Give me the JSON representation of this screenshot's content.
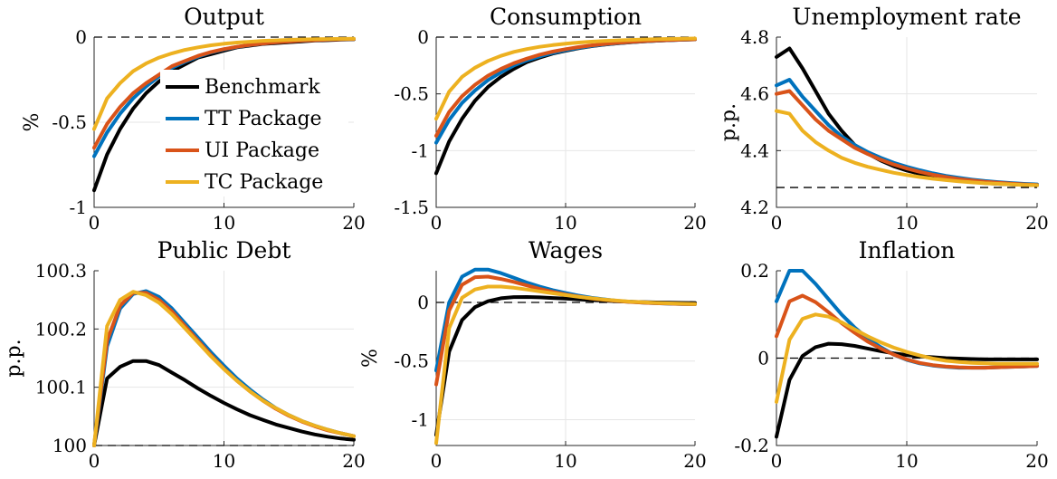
{
  "legend": {
    "panel": 0,
    "entries": [
      "Benchmark",
      "TT Package",
      "UI Package",
      "TC Package"
    ]
  },
  "chart_data": [
    {
      "type": "line",
      "title": "Output",
      "ylabel": "%",
      "xlim": [
        0,
        20
      ],
      "ylim": [
        -1,
        0
      ],
      "xticks": [
        0,
        10,
        20
      ],
      "yticks": [
        -1,
        -0.5,
        0
      ],
      "ytick_labels": [
        "-1",
        "-0.5",
        "0"
      ],
      "ref_line": 0,
      "x": [
        0,
        1,
        2,
        3,
        4,
        5,
        6,
        7,
        8,
        9,
        10,
        11,
        12,
        13,
        14,
        15,
        16,
        17,
        18,
        19,
        20
      ],
      "series": [
        {
          "name": "Benchmark",
          "color": "#000000",
          "values": [
            -0.9,
            -0.69,
            -0.54,
            -0.42,
            -0.33,
            -0.26,
            -0.2,
            -0.16,
            -0.12,
            -0.1,
            -0.08,
            -0.06,
            -0.05,
            -0.04,
            -0.035,
            -0.03,
            -0.025,
            -0.02,
            -0.018,
            -0.015,
            -0.013
          ]
        },
        {
          "name": "TT Package",
          "color": "#0072BD",
          "values": [
            -0.7,
            -0.56,
            -0.45,
            -0.36,
            -0.29,
            -0.23,
            -0.18,
            -0.145,
            -0.115,
            -0.09,
            -0.072,
            -0.058,
            -0.047,
            -0.038,
            -0.031,
            -0.025,
            -0.021,
            -0.018,
            -0.015,
            -0.013,
            -0.011
          ]
        },
        {
          "name": "UI Package",
          "color": "#D95319",
          "values": [
            -0.65,
            -0.51,
            -0.41,
            -0.33,
            -0.27,
            -0.22,
            -0.17,
            -0.14,
            -0.11,
            -0.087,
            -0.07,
            -0.057,
            -0.046,
            -0.038,
            -0.031,
            -0.026,
            -0.021,
            -0.018,
            -0.015,
            -0.013,
            -0.011
          ]
        },
        {
          "name": "TC Package",
          "color": "#EDB120",
          "values": [
            -0.54,
            -0.36,
            -0.27,
            -0.2,
            -0.155,
            -0.12,
            -0.095,
            -0.075,
            -0.06,
            -0.048,
            -0.039,
            -0.032,
            -0.027,
            -0.022,
            -0.019,
            -0.016,
            -0.014,
            -0.012,
            -0.011,
            -0.01,
            -0.009
          ]
        }
      ]
    },
    {
      "type": "line",
      "title": "Consumption",
      "ylabel": "",
      "xlim": [
        0,
        20
      ],
      "ylim": [
        -1.5,
        0
      ],
      "xticks": [
        0,
        10,
        20
      ],
      "yticks": [
        -1.5,
        -1,
        -0.5,
        0
      ],
      "ytick_labels": [
        "-1.5",
        "-1",
        "-0.5",
        "0"
      ],
      "ref_line": 0,
      "x": [
        0,
        1,
        2,
        3,
        4,
        5,
        6,
        7,
        8,
        9,
        10,
        11,
        12,
        13,
        14,
        15,
        16,
        17,
        18,
        19,
        20
      ],
      "series": [
        {
          "name": "Benchmark",
          "color": "#000000",
          "values": [
            -1.2,
            -0.92,
            -0.72,
            -0.56,
            -0.44,
            -0.35,
            -0.28,
            -0.22,
            -0.18,
            -0.145,
            -0.12,
            -0.098,
            -0.08,
            -0.066,
            -0.055,
            -0.046,
            -0.038,
            -0.032,
            -0.027,
            -0.023,
            -0.02
          ]
        },
        {
          "name": "TT Package",
          "color": "#0072BD",
          "values": [
            -0.93,
            -0.73,
            -0.58,
            -0.47,
            -0.38,
            -0.31,
            -0.25,
            -0.205,
            -0.17,
            -0.14,
            -0.115,
            -0.095,
            -0.078,
            -0.065,
            -0.054,
            -0.045,
            -0.038,
            -0.032,
            -0.027,
            -0.023,
            -0.02
          ]
        },
        {
          "name": "UI Package",
          "color": "#D95319",
          "values": [
            -0.87,
            -0.66,
            -0.52,
            -0.42,
            -0.34,
            -0.28,
            -0.23,
            -0.19,
            -0.155,
            -0.128,
            -0.106,
            -0.088,
            -0.073,
            -0.061,
            -0.051,
            -0.043,
            -0.036,
            -0.03,
            -0.026,
            -0.022,
            -0.019
          ]
        },
        {
          "name": "TC Package",
          "color": "#EDB120",
          "values": [
            -0.72,
            -0.48,
            -0.35,
            -0.27,
            -0.21,
            -0.165,
            -0.13,
            -0.105,
            -0.085,
            -0.07,
            -0.058,
            -0.048,
            -0.04,
            -0.034,
            -0.029,
            -0.025,
            -0.021,
            -0.018,
            -0.016,
            -0.014,
            -0.012
          ]
        }
      ]
    },
    {
      "type": "line",
      "title": "Unemployment rate",
      "ylabel": "p.p.",
      "xlim": [
        0,
        20
      ],
      "ylim": [
        4.2,
        4.8
      ],
      "xticks": [
        0,
        10,
        20
      ],
      "yticks": [
        4.2,
        4.4,
        4.6,
        4.8
      ],
      "ytick_labels": [
        "4.2",
        "4.4",
        "4.6",
        "4.8"
      ],
      "ref_line": 4.27,
      "x": [
        0,
        1,
        2,
        3,
        4,
        5,
        6,
        7,
        8,
        9,
        10,
        11,
        12,
        13,
        14,
        15,
        16,
        17,
        18,
        19,
        20
      ],
      "series": [
        {
          "name": "Benchmark",
          "color": "#000000",
          "values": [
            4.73,
            4.76,
            4.69,
            4.61,
            4.53,
            4.47,
            4.42,
            4.39,
            4.365,
            4.345,
            4.33,
            4.318,
            4.308,
            4.3,
            4.295,
            4.29,
            4.286,
            4.283,
            4.281,
            4.279,
            4.278
          ]
        },
        {
          "name": "TT Package",
          "color": "#0072BD",
          "values": [
            4.63,
            4.65,
            4.59,
            4.54,
            4.49,
            4.45,
            4.42,
            4.395,
            4.375,
            4.357,
            4.343,
            4.331,
            4.32,
            4.311,
            4.304,
            4.298,
            4.293,
            4.289,
            4.286,
            4.283,
            4.281
          ]
        },
        {
          "name": "UI Package",
          "color": "#D95319",
          "values": [
            4.6,
            4.61,
            4.56,
            4.51,
            4.47,
            4.44,
            4.41,
            4.388,
            4.368,
            4.351,
            4.337,
            4.325,
            4.315,
            4.307,
            4.3,
            4.295,
            4.29,
            4.287,
            4.284,
            4.281,
            4.279
          ]
        },
        {
          "name": "TC Package",
          "color": "#EDB120",
          "values": [
            4.54,
            4.53,
            4.47,
            4.43,
            4.4,
            4.375,
            4.357,
            4.343,
            4.332,
            4.322,
            4.314,
            4.307,
            4.301,
            4.296,
            4.292,
            4.288,
            4.285,
            4.283,
            4.281,
            4.279,
            4.278
          ]
        }
      ]
    },
    {
      "type": "line",
      "title": "Public Debt",
      "ylabel": "p.p.",
      "xlim": [
        0,
        20
      ],
      "ylim": [
        100,
        100.3
      ],
      "xticks": [
        0,
        10,
        20
      ],
      "yticks": [
        100,
        100.1,
        100.2,
        100.3
      ],
      "ytick_labels": [
        "100",
        "100.1",
        "100.2",
        "100.3"
      ],
      "ref_line": 100,
      "x": [
        0,
        1,
        2,
        3,
        4,
        5,
        6,
        7,
        8,
        9,
        10,
        11,
        12,
        13,
        14,
        15,
        16,
        17,
        18,
        19,
        20
      ],
      "series": [
        {
          "name": "Benchmark",
          "color": "#000000",
          "values": [
            100.0,
            100.115,
            100.135,
            100.145,
            100.145,
            100.138,
            100.125,
            100.112,
            100.098,
            100.085,
            100.073,
            100.062,
            100.052,
            100.044,
            100.036,
            100.03,
            100.024,
            100.019,
            100.015,
            100.012,
            100.01
          ]
        },
        {
          "name": "TT Package",
          "color": "#0072BD",
          "values": [
            100.0,
            100.17,
            100.235,
            100.26,
            100.265,
            100.255,
            100.235,
            100.21,
            100.185,
            100.16,
            100.137,
            100.115,
            100.096,
            100.079,
            100.064,
            100.052,
            100.042,
            100.034,
            100.027,
            100.021,
            100.016
          ]
        },
        {
          "name": "UI Package",
          "color": "#D95319",
          "values": [
            100.0,
            100.18,
            100.24,
            100.262,
            100.262,
            100.25,
            100.23,
            100.205,
            100.18,
            100.155,
            100.132,
            100.111,
            100.093,
            100.077,
            100.063,
            100.051,
            100.041,
            100.033,
            100.026,
            100.021,
            100.016
          ]
        },
        {
          "name": "TC Package",
          "color": "#EDB120",
          "values": [
            100.0,
            100.205,
            100.25,
            100.264,
            100.258,
            100.245,
            100.225,
            100.201,
            100.177,
            100.153,
            100.131,
            100.111,
            100.093,
            100.077,
            100.064,
            100.052,
            100.042,
            100.034,
            100.027,
            100.021,
            100.016
          ]
        }
      ]
    },
    {
      "type": "line",
      "title": "Wages",
      "ylabel": "%",
      "xlim": [
        0,
        20
      ],
      "ylim": [
        -1.22,
        0.27
      ],
      "xticks": [
        0,
        10,
        20
      ],
      "yticks": [
        -1,
        -0.5,
        0
      ],
      "ytick_labels": [
        "-1",
        "-0.5",
        "0"
      ],
      "ref_line": 0,
      "x": [
        0,
        1,
        2,
        3,
        4,
        5,
        6,
        7,
        8,
        9,
        10,
        11,
        12,
        13,
        14,
        15,
        16,
        17,
        18,
        19,
        20
      ],
      "series": [
        {
          "name": "Benchmark",
          "color": "#000000",
          "values": [
            -1.13,
            -0.42,
            -0.15,
            -0.04,
            0.01,
            0.035,
            0.045,
            0.046,
            0.043,
            0.038,
            0.032,
            0.026,
            0.02,
            0.015,
            0.01,
            0.006,
            0.003,
            0.0,
            -0.002,
            -0.004,
            -0.005
          ]
        },
        {
          "name": "TT Package",
          "color": "#0072BD",
          "values": [
            -0.58,
            0.0,
            0.22,
            0.28,
            0.28,
            0.25,
            0.21,
            0.17,
            0.135,
            0.105,
            0.08,
            0.058,
            0.04,
            0.026,
            0.014,
            0.005,
            -0.002,
            -0.007,
            -0.011,
            -0.014,
            -0.016
          ]
        },
        {
          "name": "UI Package",
          "color": "#D95319",
          "values": [
            -0.7,
            -0.07,
            0.15,
            0.215,
            0.22,
            0.2,
            0.175,
            0.145,
            0.115,
            0.09,
            0.068,
            0.05,
            0.034,
            0.022,
            0.012,
            0.004,
            -0.002,
            -0.007,
            -0.01,
            -0.013,
            -0.015
          ]
        },
        {
          "name": "TC Package",
          "color": "#EDB120",
          "values": [
            -1.2,
            -0.22,
            0.04,
            0.11,
            0.135,
            0.135,
            0.125,
            0.11,
            0.094,
            0.078,
            0.062,
            0.048,
            0.035,
            0.024,
            0.015,
            0.007,
            0.001,
            -0.004,
            -0.008,
            -0.011,
            -0.013
          ]
        }
      ]
    },
    {
      "type": "line",
      "title": "Inflation",
      "ylabel": "",
      "xlim": [
        0,
        20
      ],
      "ylim": [
        -0.2,
        0.2
      ],
      "xticks": [
        0,
        10,
        20
      ],
      "yticks": [
        -0.2,
        0,
        0.2
      ],
      "ytick_labels": [
        "-0.2",
        "0",
        "0.2"
      ],
      "ref_line": 0,
      "x": [
        0,
        1,
        2,
        3,
        4,
        5,
        6,
        7,
        8,
        9,
        10,
        11,
        12,
        13,
        14,
        15,
        16,
        17,
        18,
        19,
        20
      ],
      "series": [
        {
          "name": "Benchmark",
          "color": "#000000",
          "values": [
            -0.18,
            -0.05,
            0.005,
            0.025,
            0.033,
            0.032,
            0.028,
            0.022,
            0.016,
            0.011,
            0.007,
            0.004,
            0.002,
            0.0,
            -0.001,
            -0.002,
            -0.003,
            -0.003,
            -0.003,
            -0.003,
            -0.003
          ]
        },
        {
          "name": "TT Package",
          "color": "#0072BD",
          "values": [
            0.13,
            0.2,
            0.2,
            0.17,
            0.135,
            0.1,
            0.07,
            0.045,
            0.025,
            0.008,
            -0.004,
            -0.012,
            -0.017,
            -0.02,
            -0.022,
            -0.022,
            -0.022,
            -0.021,
            -0.02,
            -0.019,
            -0.018
          ]
        },
        {
          "name": "UI Package",
          "color": "#D95319",
          "values": [
            0.05,
            0.13,
            0.143,
            0.128,
            0.105,
            0.08,
            0.058,
            0.038,
            0.022,
            0.008,
            -0.003,
            -0.011,
            -0.016,
            -0.019,
            -0.021,
            -0.022,
            -0.022,
            -0.021,
            -0.02,
            -0.019,
            -0.018
          ]
        },
        {
          "name": "TC Package",
          "color": "#EDB120",
          "values": [
            -0.1,
            0.042,
            0.09,
            0.1,
            0.095,
            0.082,
            0.066,
            0.05,
            0.036,
            0.024,
            0.014,
            0.006,
            -0.001,
            -0.006,
            -0.009,
            -0.011,
            -0.012,
            -0.013,
            -0.013,
            -0.013,
            -0.013
          ]
        }
      ]
    }
  ]
}
